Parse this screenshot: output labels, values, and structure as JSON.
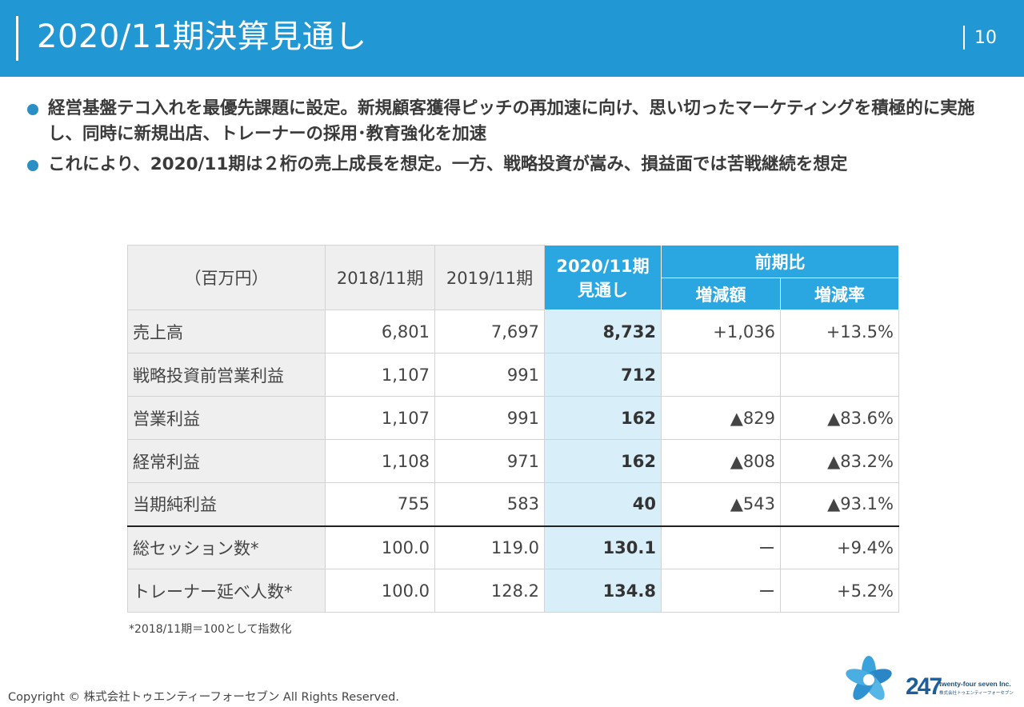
{
  "header": {
    "title": "2020/11期決算見通し",
    "page_number": "10"
  },
  "bullets": [
    "経営基盤テコ入れを最優先課題に設定。新規顧客獲得ピッチの再加速に向け、思い切ったマーケティングを積極的に実施し、同時に新規出店、トレーナーの採用･教育強化を加速",
    "これにより、2020/11期は２桁の売上成長を想定。一方、戦略投資が嵩み、損益面では苦戦継続を想定"
  ],
  "table": {
    "unit_header": "（百万円）",
    "col_2018": "2018/11期",
    "col_2019": "2019/11期",
    "col_2020_line1": "2020/11期",
    "col_2020_line2": "見通し",
    "col_group": "前期比",
    "col_diff": "増減額",
    "col_rate": "増減率",
    "rows": [
      {
        "label": "売上高",
        "v2018": "6,801",
        "v2019": "7,697",
        "v2020": "8,732",
        "diff": "+1,036",
        "rate": "+13.5%"
      },
      {
        "label": "戦略投資前営業利益",
        "v2018": "1,107",
        "v2019": "991",
        "v2020": "712",
        "diff": "",
        "rate": ""
      },
      {
        "label": "営業利益",
        "v2018": "1,107",
        "v2019": "991",
        "v2020": "162",
        "diff": "▲829",
        "rate": "▲83.6%"
      },
      {
        "label": "経常利益",
        "v2018": "1,108",
        "v2019": "971",
        "v2020": "162",
        "diff": "▲808",
        "rate": "▲83.2%"
      },
      {
        "label": "当期純利益",
        "v2018": "755",
        "v2019": "583",
        "v2020": "40",
        "diff": "▲543",
        "rate": "▲93.1%"
      },
      {
        "label": "総セッション数*",
        "v2018": "100.0",
        "v2019": "119.0",
        "v2020": "130.1",
        "diff": "ー",
        "rate": "+9.4%"
      },
      {
        "label": "トレーナー延べ人数*",
        "v2018": "100.0",
        "v2019": "128.2",
        "v2020": "134.8",
        "diff": "ー",
        "rate": "+5.2%"
      }
    ]
  },
  "footnote": "*2018/11期＝100として指数化",
  "footer": {
    "copyright": "Copyright © 株式会社トゥエンティーフォーセブン All Rights Reserved.",
    "logo_mark": "247",
    "logo_brand": "twenty-four seven Inc.",
    "logo_brand_sub": "株式会社トゥエンティーフォーセブン"
  },
  "colors": {
    "header_blue": "#2197d4",
    "table_header_blue": "#2aa6e0",
    "projection_fill": "#d8eef9",
    "bullet_dot": "#2a8fc5"
  },
  "icons": [
    "bullet-dot-icon",
    "company-logo-icon"
  ]
}
